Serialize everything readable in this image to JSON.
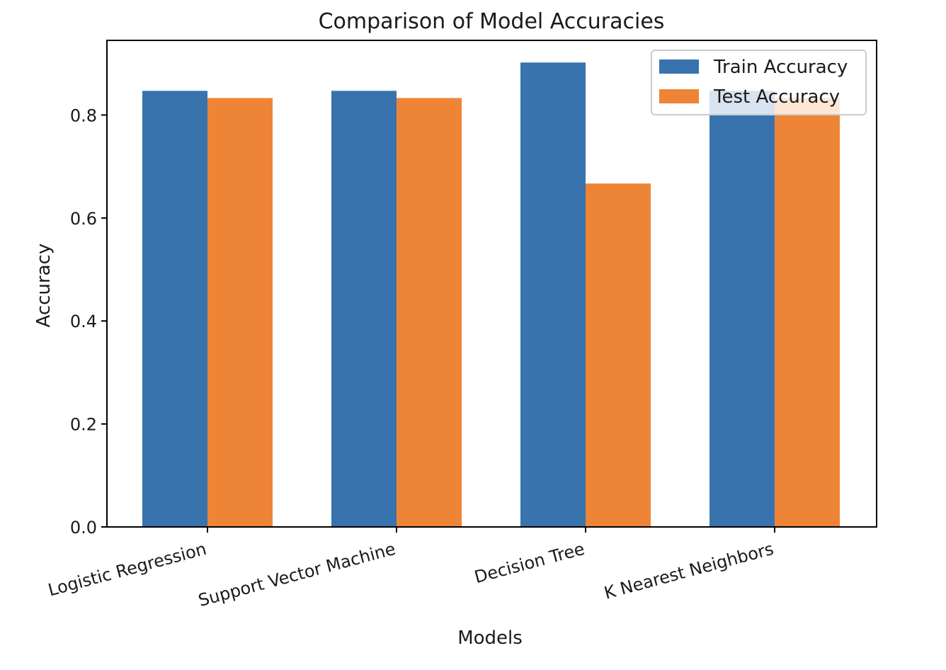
{
  "chart_data": {
    "type": "bar",
    "title": "Comparison of Model Accuracies",
    "xlabel": "Models",
    "ylabel": "Accuracy",
    "categories": [
      "Logistic Regression",
      "Support Vector Machine",
      "Decision Tree",
      "K Nearest Neighbors"
    ],
    "series": [
      {
        "name": "Train Accuracy",
        "color": "#3873AE",
        "values": [
          0.847,
          0.847,
          0.902,
          0.847
        ]
      },
      {
        "name": "Test Accuracy",
        "color": "#EE8536",
        "values": [
          0.833,
          0.833,
          0.667,
          0.833
        ]
      }
    ],
    "ylim": [
      0,
      0.945
    ],
    "yticks": [
      "0.0",
      "0.2",
      "0.4",
      "0.6",
      "0.8"
    ],
    "grid": false,
    "legend_position": "top-right"
  }
}
